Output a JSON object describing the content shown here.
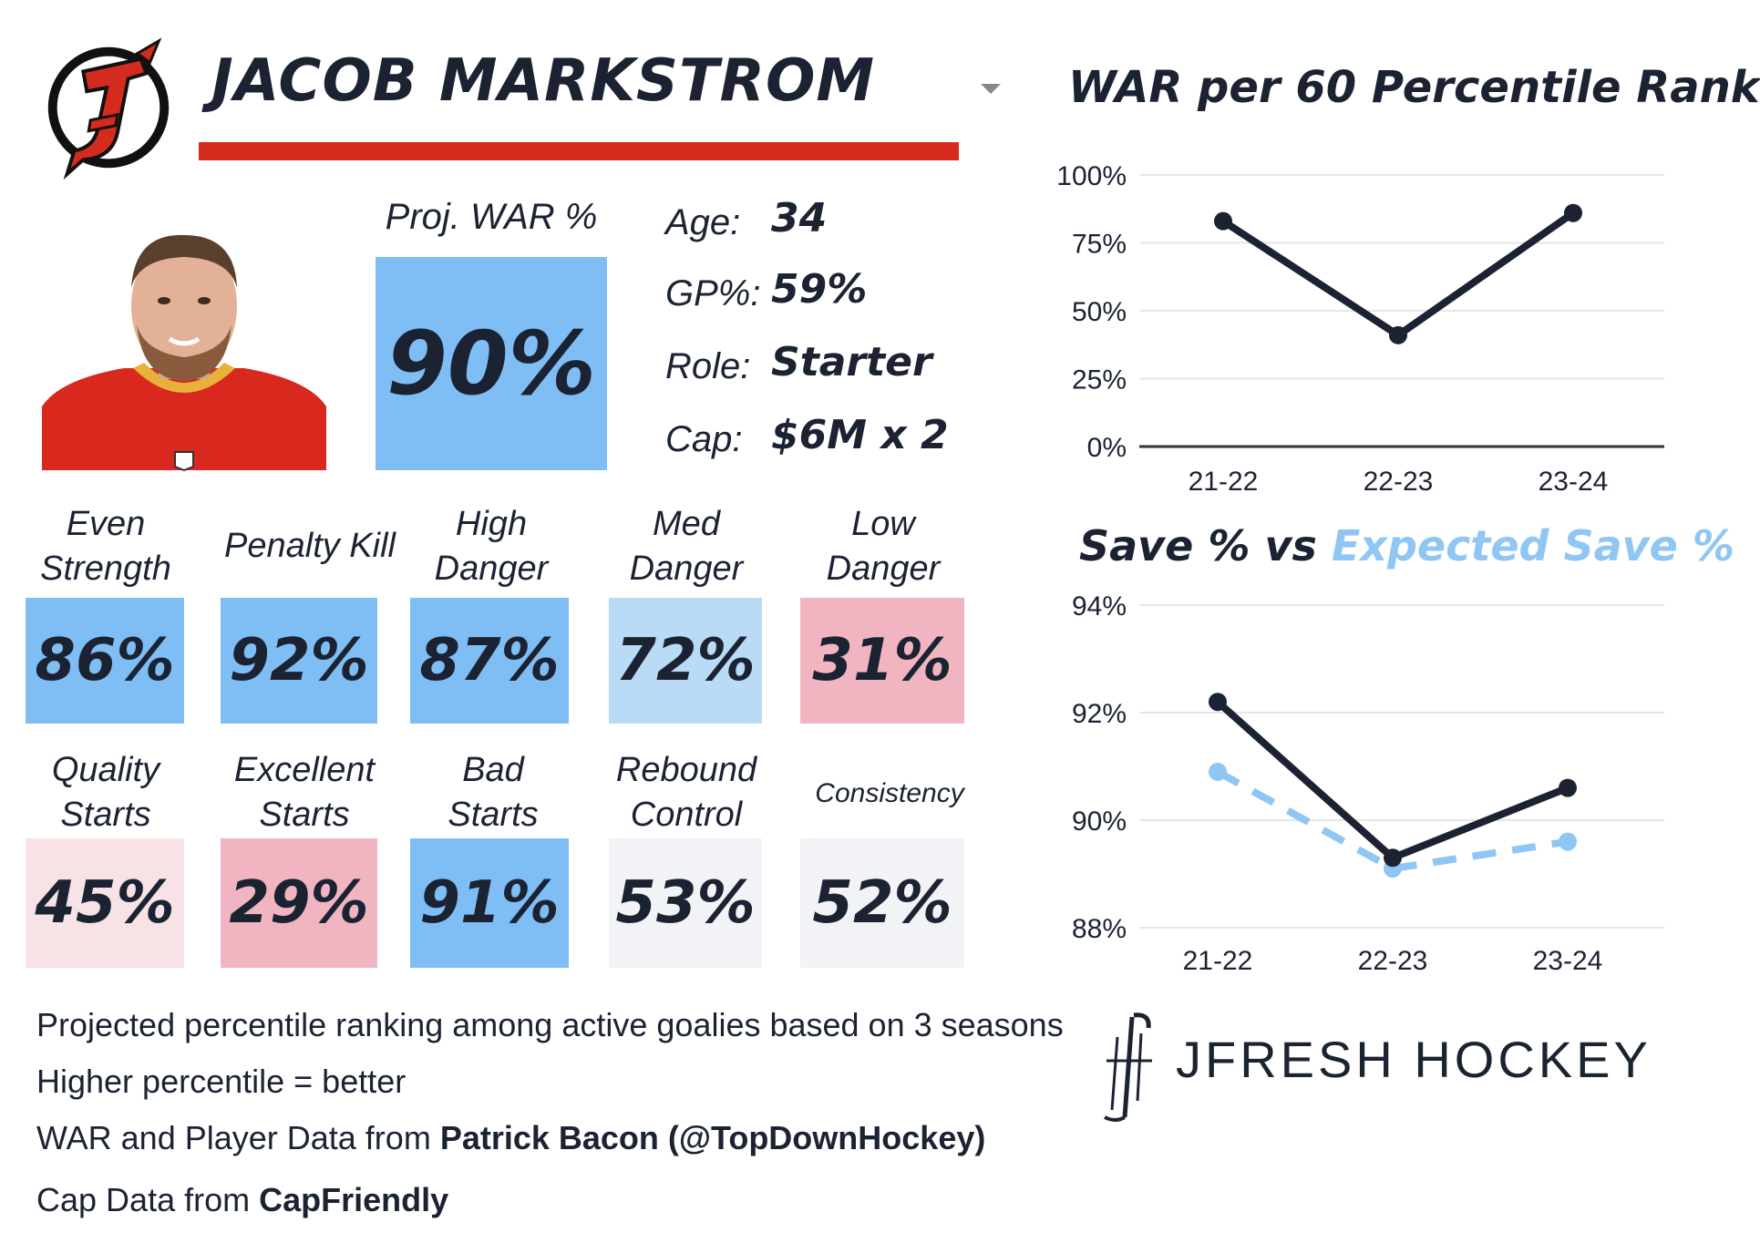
{
  "player": {
    "name": "JACOB MARKSTROM",
    "proj_war_label": "Proj. WAR %",
    "proj_war_value": "90%"
  },
  "info": [
    {
      "label": "Age:",
      "value": "34"
    },
    {
      "label": "GP%:",
      "value": "59%"
    },
    {
      "label": "Role:",
      "value": "Starter"
    },
    {
      "label": "Cap:",
      "value": "$6M x 2"
    }
  ],
  "stats_row1": [
    {
      "label": "Even Strength",
      "value": "86%",
      "color": "#7fbef5"
    },
    {
      "label": "Penalty Kill",
      "value": "92%",
      "color": "#7fbef5"
    },
    {
      "label": "High Danger",
      "value": "87%",
      "color": "#7fbef5"
    },
    {
      "label": "Med Danger",
      "value": "72%",
      "color": "#b9dbf6"
    },
    {
      "label": "Low Danger",
      "value": "31%",
      "color": "#f0b5c0"
    }
  ],
  "stats_row2": [
    {
      "label": "Quality Starts",
      "value": "45%",
      "color": "#f7e2e6"
    },
    {
      "label": "Excellent Starts",
      "value": "29%",
      "color": "#f0b5c0"
    },
    {
      "label": "Bad Starts",
      "value": "91%",
      "color": "#7fbef5"
    },
    {
      "label": "Rebound Control",
      "value": "53%",
      "color": "#f1f3f6"
    },
    {
      "label": "Consistency",
      "value": "52%",
      "color": "#f1f3f6"
    }
  ],
  "footer": {
    "line1": "Projected percentile ranking among active goalies based on 3 seasons",
    "line2": "Higher percentile = better",
    "line3_prefix": "WAR and Player Data from ",
    "line3_bold": "Patrick Bacon (@TopDownHockey)",
    "line4_prefix": "Cap Data from ",
    "line4_bold": "CapFriendly"
  },
  "brand": {
    "name": "JFRESH HOCKEY"
  },
  "colors": {
    "dark": "#1b2333",
    "light_blue": "#8fc6f3",
    "devils_red": "#d52b1e"
  },
  "chart_data": [
    {
      "type": "line",
      "title": "WAR per 60 Percentile Rank",
      "categories": [
        "21-22",
        "22-23",
        "23-24"
      ],
      "series": [
        {
          "values": [
            83,
            41,
            86
          ],
          "color": "#1b2333"
        }
      ],
      "yticks": [
        "0%",
        "25%",
        "50%",
        "75%",
        "100%"
      ],
      "ylim": [
        0,
        100
      ],
      "grid": true
    },
    {
      "type": "line",
      "title": "Save % vs Expected Save %",
      "title_part1": "Save % vs ",
      "title_part2": "Expected Save %",
      "categories": [
        "21-22",
        "22-23",
        "23-24"
      ],
      "series": [
        {
          "name": "Save %",
          "values": [
            92.2,
            89.3,
            90.6
          ],
          "color": "#1b2333",
          "style": "solid"
        },
        {
          "name": "Expected Save %",
          "values": [
            90.9,
            89.1,
            89.6
          ],
          "color": "#8fc6f3",
          "style": "dashed"
        }
      ],
      "yticks": [
        "88%",
        "90%",
        "92%",
        "94%"
      ],
      "ylim": [
        88,
        94
      ],
      "grid": true
    }
  ]
}
